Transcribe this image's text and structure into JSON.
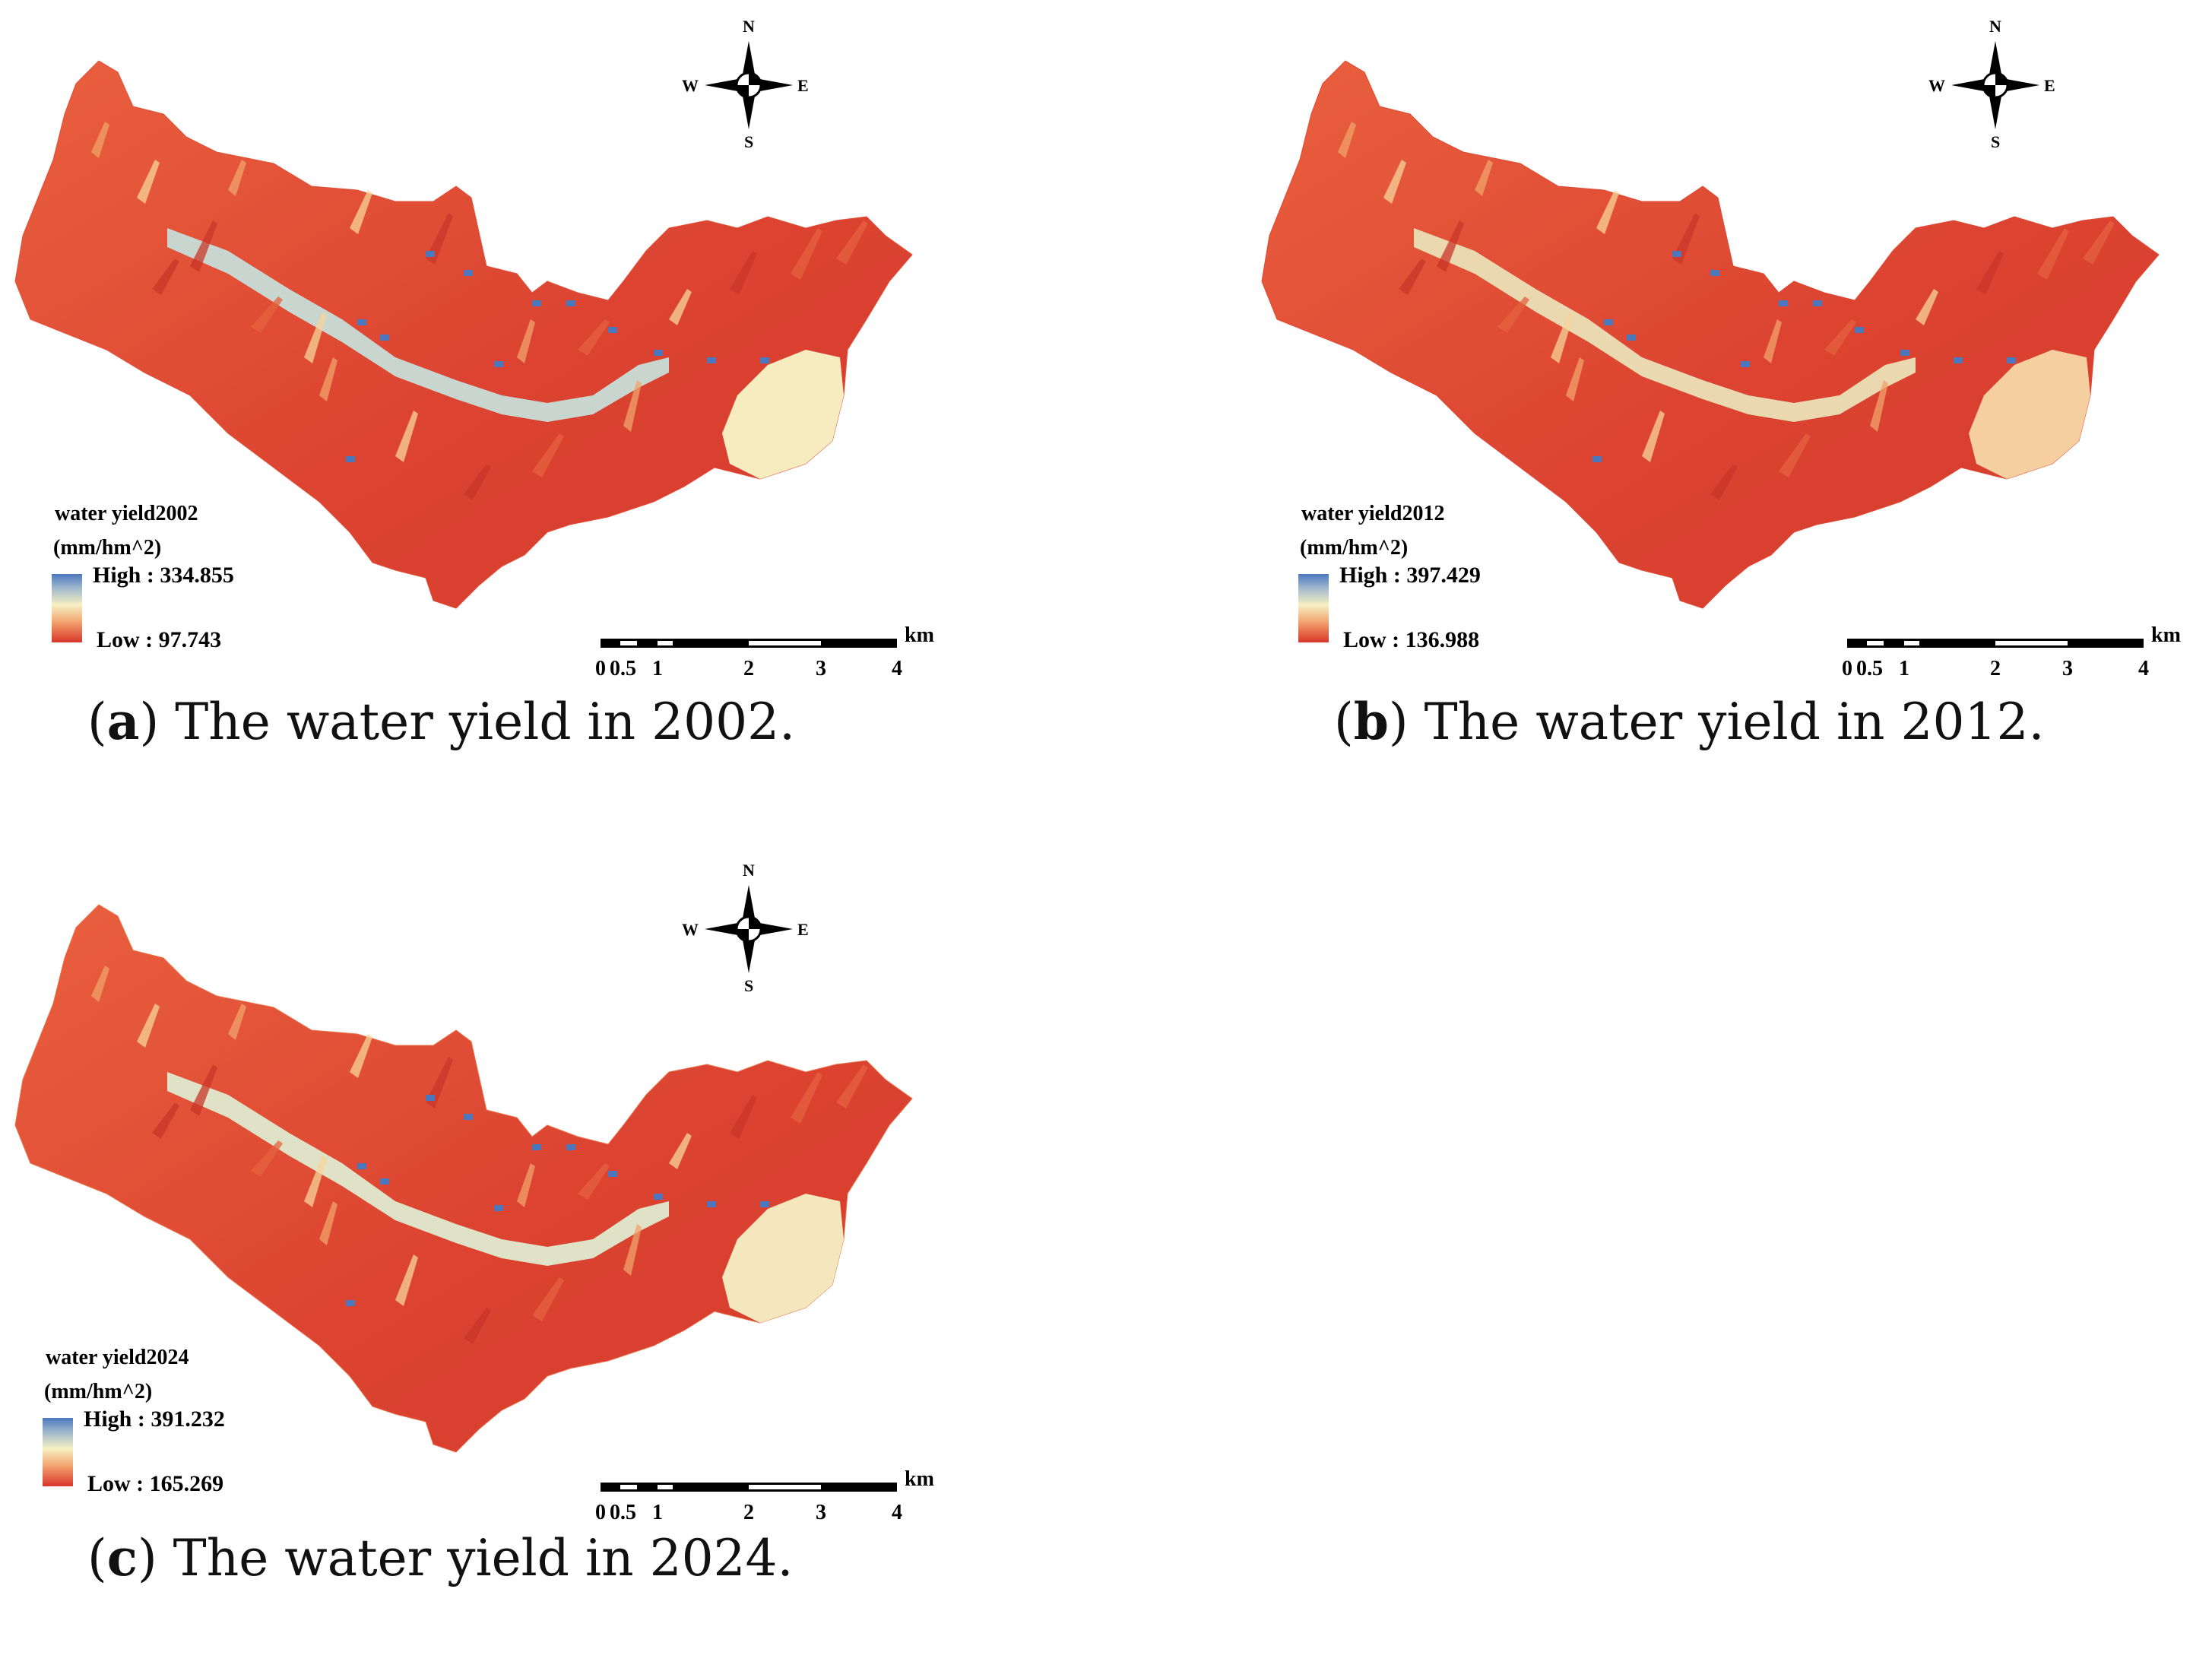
{
  "panels": [
    {
      "id": "a",
      "letter": "a",
      "caption_text": "The water yield in 2002.",
      "legend_title": "water yield2002",
      "legend_unit": "(mm/hm^2)",
      "high": "High : 334.855",
      "low": "Low : 97.743",
      "scale_unit": "km",
      "scale_ticks": [
        "0",
        "0.5",
        "1",
        "2",
        "3",
        "4"
      ],
      "compass": {
        "n": "N",
        "s": "S",
        "e": "E",
        "w": "W"
      }
    },
    {
      "id": "b",
      "letter": "b",
      "caption_text": "The water yield in 2012.",
      "legend_title": "water yield2012",
      "legend_unit": "(mm/hm^2)",
      "high": "High : 397.429",
      "low": "Low : 136.988",
      "scale_unit": "km",
      "scale_ticks": [
        "0",
        "0.5",
        "1",
        "2",
        "3",
        "4"
      ],
      "compass": {
        "n": "N",
        "s": "S",
        "e": "E",
        "w": "W"
      }
    },
    {
      "id": "c",
      "letter": "c",
      "caption_text": "The water yield in 2024.",
      "legend_title": "water yield2024",
      "legend_unit": "(mm/hm^2)",
      "high": "High : 391.232",
      "low": "Low : 165.269",
      "scale_unit": "km",
      "scale_ticks": [
        "0",
        "0.5",
        "1",
        "2",
        "3",
        "4"
      ],
      "compass": {
        "n": "N",
        "s": "S",
        "e": "E",
        "w": "W"
      }
    }
  ],
  "colors": {
    "high": "#4b78bd",
    "mid": "#f6f0c4",
    "low": "#d9352a"
  }
}
